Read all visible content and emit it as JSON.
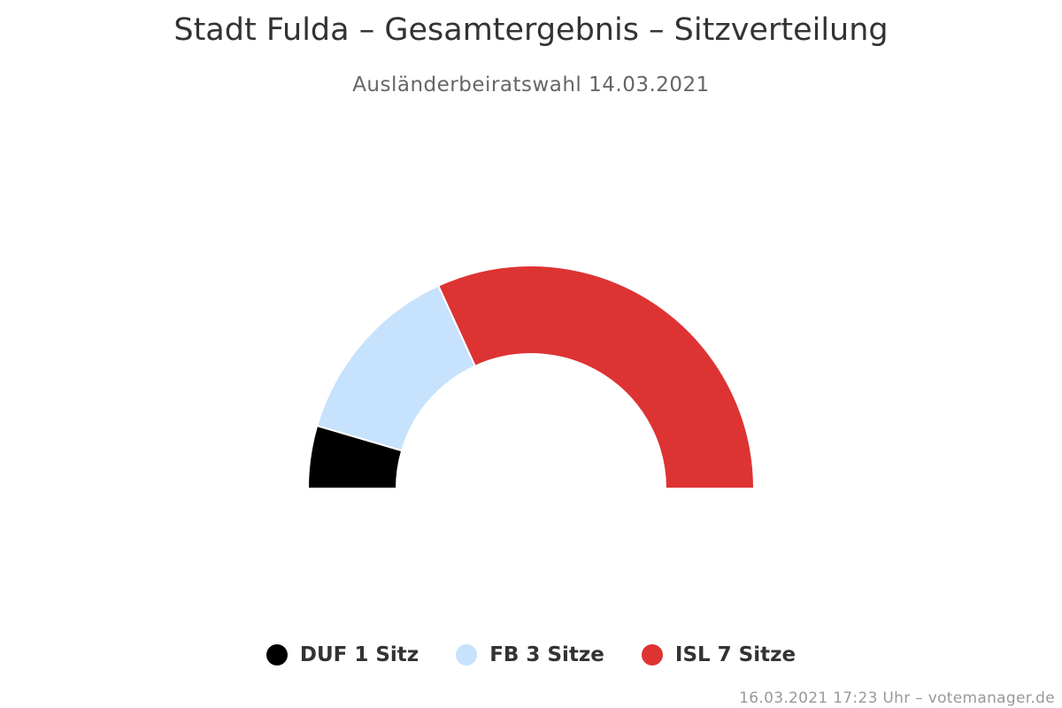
{
  "chart_data": {
    "type": "pie",
    "variant": "semi-circle",
    "title": "Stadt Fulda – Gesamtergebnis – Sitzverteilung",
    "subtitle": "Ausländerbeiratswahl 14.03.2021",
    "total_seats": 11,
    "series": [
      {
        "name": "DUF",
        "value": 1,
        "label": "DUF 1 Sitz",
        "color": "#000000"
      },
      {
        "name": "FB",
        "value": 3,
        "label": "FB 3 Sitze",
        "color": "#c6e2fd"
      },
      {
        "name": "ISL",
        "value": 7,
        "label": "ISL 7 Sitze",
        "color": "#dd3333"
      }
    ],
    "legend_position": "bottom-center"
  },
  "credit": "16.03.2021 17:23 Uhr – votemanager.de"
}
